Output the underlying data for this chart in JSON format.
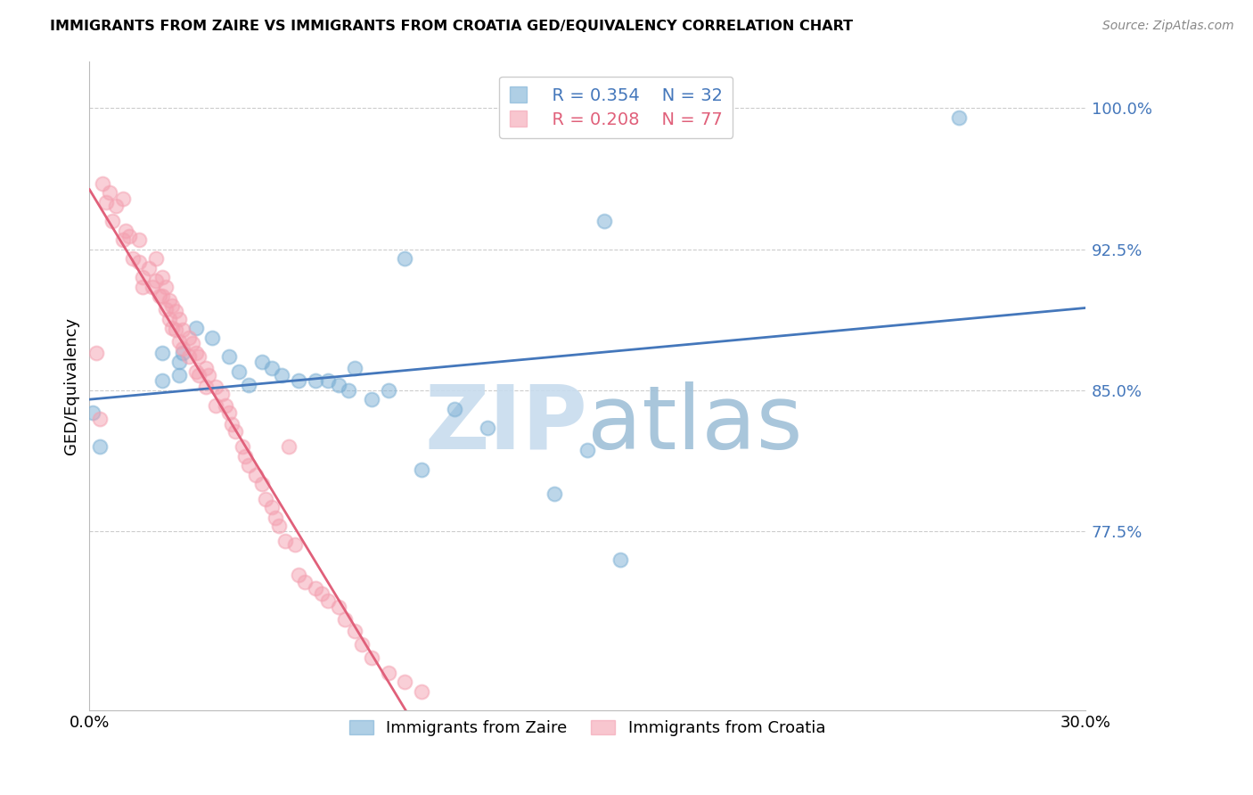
{
  "title": "IMMIGRANTS FROM ZAIRE VS IMMIGRANTS FROM CROATIA GED/EQUIVALENCY CORRELATION CHART",
  "source": "Source: ZipAtlas.com",
  "ylabel": "GED/Equivalency",
  "yticks": [
    0.775,
    0.85,
    0.925,
    1.0
  ],
  "ytick_labels": [
    "77.5%",
    "85.0%",
    "92.5%",
    "100.0%"
  ],
  "ylim": [
    0.68,
    1.025
  ],
  "xlim": [
    0.0,
    0.3
  ],
  "legend_zaire_R": "R = 0.354",
  "legend_zaire_N": "N = 32",
  "legend_croatia_R": "R = 0.208",
  "legend_croatia_N": "N = 77",
  "zaire_color": "#7BAFD4",
  "croatia_color": "#F4A0B0",
  "zaire_line_color": "#4477BB",
  "croatia_line_color": "#E0607A",
  "watermark_zip": "ZIP",
  "watermark_atlas": "atlas",
  "zaire_points_x": [
    0.001,
    0.003,
    0.022,
    0.022,
    0.027,
    0.027,
    0.028,
    0.032,
    0.037,
    0.042,
    0.045,
    0.048,
    0.052,
    0.055,
    0.058,
    0.063,
    0.068,
    0.072,
    0.075,
    0.078,
    0.08,
    0.085,
    0.09,
    0.095,
    0.1,
    0.11,
    0.12,
    0.14,
    0.15,
    0.155,
    0.16,
    0.262
  ],
  "zaire_points_y": [
    0.838,
    0.82,
    0.87,
    0.855,
    0.865,
    0.858,
    0.87,
    0.883,
    0.878,
    0.868,
    0.86,
    0.853,
    0.865,
    0.862,
    0.858,
    0.855,
    0.855,
    0.855,
    0.853,
    0.85,
    0.862,
    0.845,
    0.85,
    0.92,
    0.808,
    0.84,
    0.83,
    0.795,
    0.818,
    0.94,
    0.76,
    0.995
  ],
  "croatia_points_x": [
    0.002,
    0.003,
    0.004,
    0.005,
    0.006,
    0.007,
    0.008,
    0.01,
    0.01,
    0.011,
    0.012,
    0.013,
    0.015,
    0.015,
    0.016,
    0.016,
    0.018,
    0.019,
    0.02,
    0.02,
    0.021,
    0.022,
    0.022,
    0.023,
    0.023,
    0.024,
    0.024,
    0.025,
    0.025,
    0.026,
    0.026,
    0.027,
    0.027,
    0.028,
    0.028,
    0.03,
    0.03,
    0.031,
    0.032,
    0.032,
    0.033,
    0.033,
    0.035,
    0.035,
    0.036,
    0.038,
    0.038,
    0.04,
    0.041,
    0.042,
    0.043,
    0.044,
    0.046,
    0.047,
    0.048,
    0.05,
    0.052,
    0.053,
    0.055,
    0.056,
    0.057,
    0.059,
    0.06,
    0.062,
    0.063,
    0.065,
    0.068,
    0.07,
    0.072,
    0.075,
    0.077,
    0.08,
    0.082,
    0.085,
    0.09,
    0.095,
    0.1
  ],
  "croatia_points_y": [
    0.87,
    0.835,
    0.96,
    0.95,
    0.955,
    0.94,
    0.948,
    0.952,
    0.93,
    0.935,
    0.932,
    0.92,
    0.93,
    0.918,
    0.91,
    0.905,
    0.915,
    0.905,
    0.92,
    0.908,
    0.9,
    0.91,
    0.9,
    0.905,
    0.893,
    0.898,
    0.888,
    0.895,
    0.883,
    0.892,
    0.882,
    0.888,
    0.876,
    0.882,
    0.872,
    0.878,
    0.868,
    0.875,
    0.87,
    0.86,
    0.868,
    0.858,
    0.862,
    0.852,
    0.858,
    0.852,
    0.842,
    0.848,
    0.842,
    0.838,
    0.832,
    0.828,
    0.82,
    0.815,
    0.81,
    0.805,
    0.8,
    0.792,
    0.788,
    0.782,
    0.778,
    0.77,
    0.82,
    0.768,
    0.752,
    0.748,
    0.745,
    0.742,
    0.738,
    0.735,
    0.728,
    0.722,
    0.715,
    0.708,
    0.7,
    0.695,
    0.69
  ]
}
